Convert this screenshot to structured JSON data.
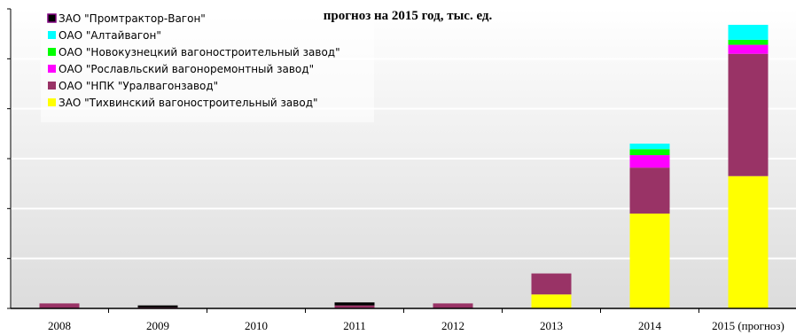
{
  "chart_data": {
    "type": "bar",
    "stacked": true,
    "title": "прогноз на 2015 год, тыс. ед.",
    "xlabel": "",
    "ylabel": "",
    "categories": [
      "2008",
      "2009",
      "2010",
      "2011",
      "2012",
      "2013",
      "2014",
      "2015 (прогноз)"
    ],
    "ylim": [
      0,
      60
    ],
    "grid": true,
    "legend_position": "top-left",
    "series": [
      {
        "name": "ЗАО \"Тихвинский вагоностроительный завод\"",
        "color": "#ffff00",
        "values": [
          0,
          0,
          0,
          0,
          0,
          2.8,
          19.0,
          26.5
        ]
      },
      {
        "name": "ОАО \"НПК \"Уралвагонзавод\"",
        "color": "#993366",
        "values": [
          1.0,
          0.2,
          0,
          0.6,
          1.0,
          4.2,
          9.2,
          24.5
        ]
      },
      {
        "name": "ОАО \"Рославльский вагоноремонтный завод\"",
        "color": "#ff00ff",
        "values": [
          0,
          0,
          0,
          0,
          0,
          0,
          2.5,
          1.8
        ]
      },
      {
        "name": "ОАО \"Новокузнецкий вагоностроительный завод\"",
        "color": "#00ff00",
        "values": [
          0,
          0,
          0,
          0,
          0,
          0,
          1.2,
          1.0
        ]
      },
      {
        "name": "ОАО \"Алтайвагон\"",
        "color": "#00ffff",
        "values": [
          0,
          0,
          0,
          0,
          0,
          0,
          1.1,
          3.0
        ]
      },
      {
        "name": "ЗАО \"Промтрактор-Вагон\"",
        "color": "#000000",
        "values": [
          0,
          0.4,
          0,
          0.6,
          0,
          0,
          0,
          0
        ]
      }
    ],
    "legend_order": [
      5,
      4,
      3,
      2,
      1,
      0
    ]
  }
}
